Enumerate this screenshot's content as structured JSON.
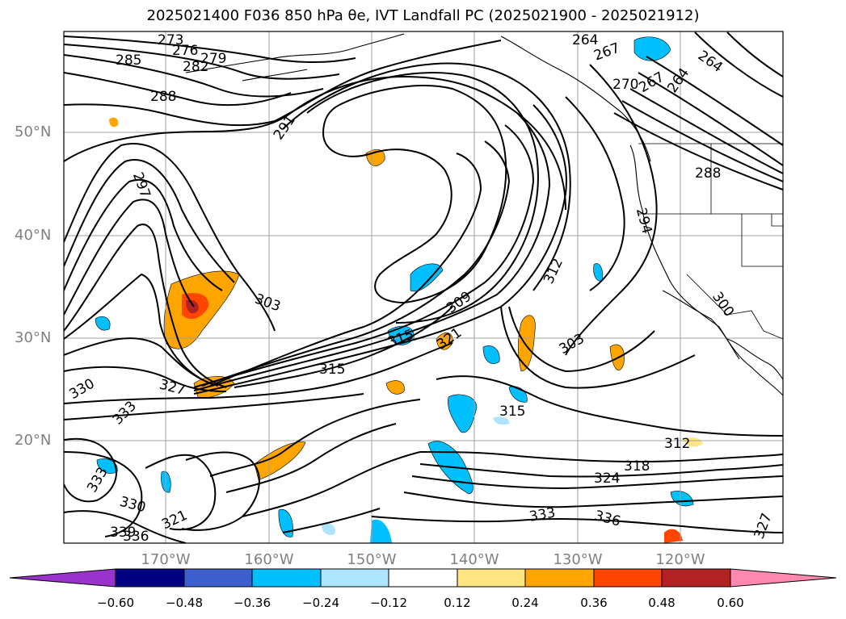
{
  "title": "2025021400 F036 850 hPa θe, IVT Landfall PC (2025021900 - 2025021912)",
  "lat_labels": [
    "50°N",
    "40°N",
    "30°N",
    "20°N"
  ],
  "lon_labels": [
    "170°W",
    "160°W",
    "150°W",
    "140°W",
    "130°W",
    "120°W"
  ],
  "colorbar": {
    "ticks": [
      "−0.60",
      "−0.48",
      "−0.36",
      "−0.24",
      "−0.12",
      "0.12",
      "0.24",
      "0.36",
      "0.48",
      "0.60"
    ],
    "colors": [
      "#9933cc",
      "#000080",
      "#3c5fcd",
      "#00bfff",
      "#aee4ff",
      "#ffffff",
      "#ffe680",
      "#ffa500",
      "#ff4500",
      "#b22222",
      "#ff88b0"
    ]
  },
  "contour_labels": [
    "273",
    "276",
    "279",
    "282",
    "285",
    "288",
    "291",
    "297",
    "303",
    "309",
    "312",
    "315",
    "321",
    "327",
    "330",
    "333",
    "264",
    "267",
    "270",
    "267",
    "264",
    "264",
    "288",
    "294",
    "300",
    "303",
    "315",
    "312",
    "318",
    "324",
    "333",
    "336",
    "327",
    "321",
    "330",
    "339",
    "336",
    "333",
    "315"
  ]
}
